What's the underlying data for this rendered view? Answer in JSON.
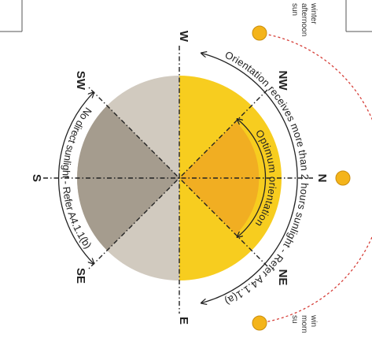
{
  "compass": {
    "north": "N",
    "northeast": "NE",
    "east": "E",
    "southeast": "SE",
    "south": "S",
    "southwest": "SW",
    "west": "W",
    "northwest": "NW"
  },
  "arcs": {
    "outer_label": "Orientation receives more than 2 hours sunlight - Refer A4.1.1(a)",
    "optimum_label": "Optimum orientation",
    "no_sun_label": "No direct sunlight - Refer A4.1.1(b)"
  },
  "sun_path": {
    "winter_afternoon": [
      "winter",
      "afternoon",
      "sun"
    ],
    "winter_morning": [
      "win",
      "morn",
      "su"
    ]
  },
  "colors": {
    "sunny_half": "#f7cd1f",
    "optimum_sector": "#f1ae22",
    "shaded_sector": "#a59c8e",
    "shaded_half": "#d1cabf",
    "sun_path": "#d6403a",
    "sun": "#f4b41a"
  }
}
